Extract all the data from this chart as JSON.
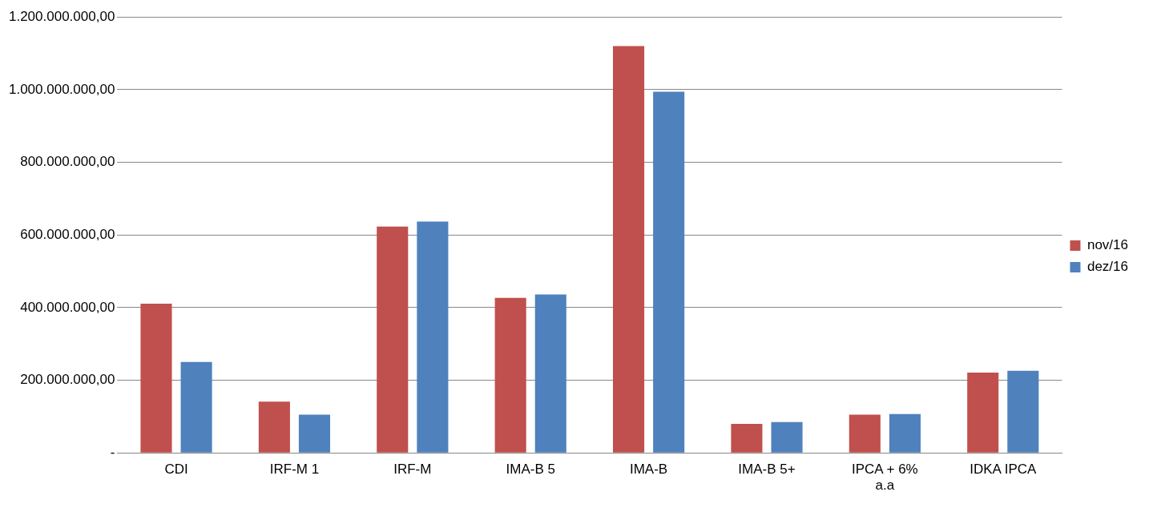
{
  "chart_data": {
    "type": "bar",
    "categories": [
      "CDI",
      "IRF-M 1",
      "IRF-M",
      "IMA-B 5",
      "IMA-B",
      "IMA-B 5+",
      "IPCA + 6% a.a",
      "IDKA IPCA"
    ],
    "series": [
      {
        "name": "nov/16",
        "color": "#c0504d",
        "values": [
          411000000,
          141000000,
          623000000,
          427000000,
          1120000000,
          80000000,
          105000000,
          221000000
        ]
      },
      {
        "name": "dez/16",
        "color": "#4f81bd",
        "values": [
          250000000,
          105000000,
          637000000,
          436000000,
          994000000,
          85000000,
          107000000,
          226000000
        ]
      }
    ],
    "ylim": [
      0,
      1200000000
    ],
    "yticks": [
      {
        "value": 0,
        "label": "-"
      },
      {
        "value": 200000000,
        "label": "200.000.000,00"
      },
      {
        "value": 400000000,
        "label": "400.000.000,00"
      },
      {
        "value": 600000000,
        "label": "600.000.000,00"
      },
      {
        "value": 800000000,
        "label": "800.000.000,00"
      },
      {
        "value": 1000000000,
        "label": "1.000.000.000,00"
      },
      {
        "value": 1200000000,
        "label": "1.200.000.000,00"
      }
    ],
    "grid": "y",
    "legend": "right"
  }
}
